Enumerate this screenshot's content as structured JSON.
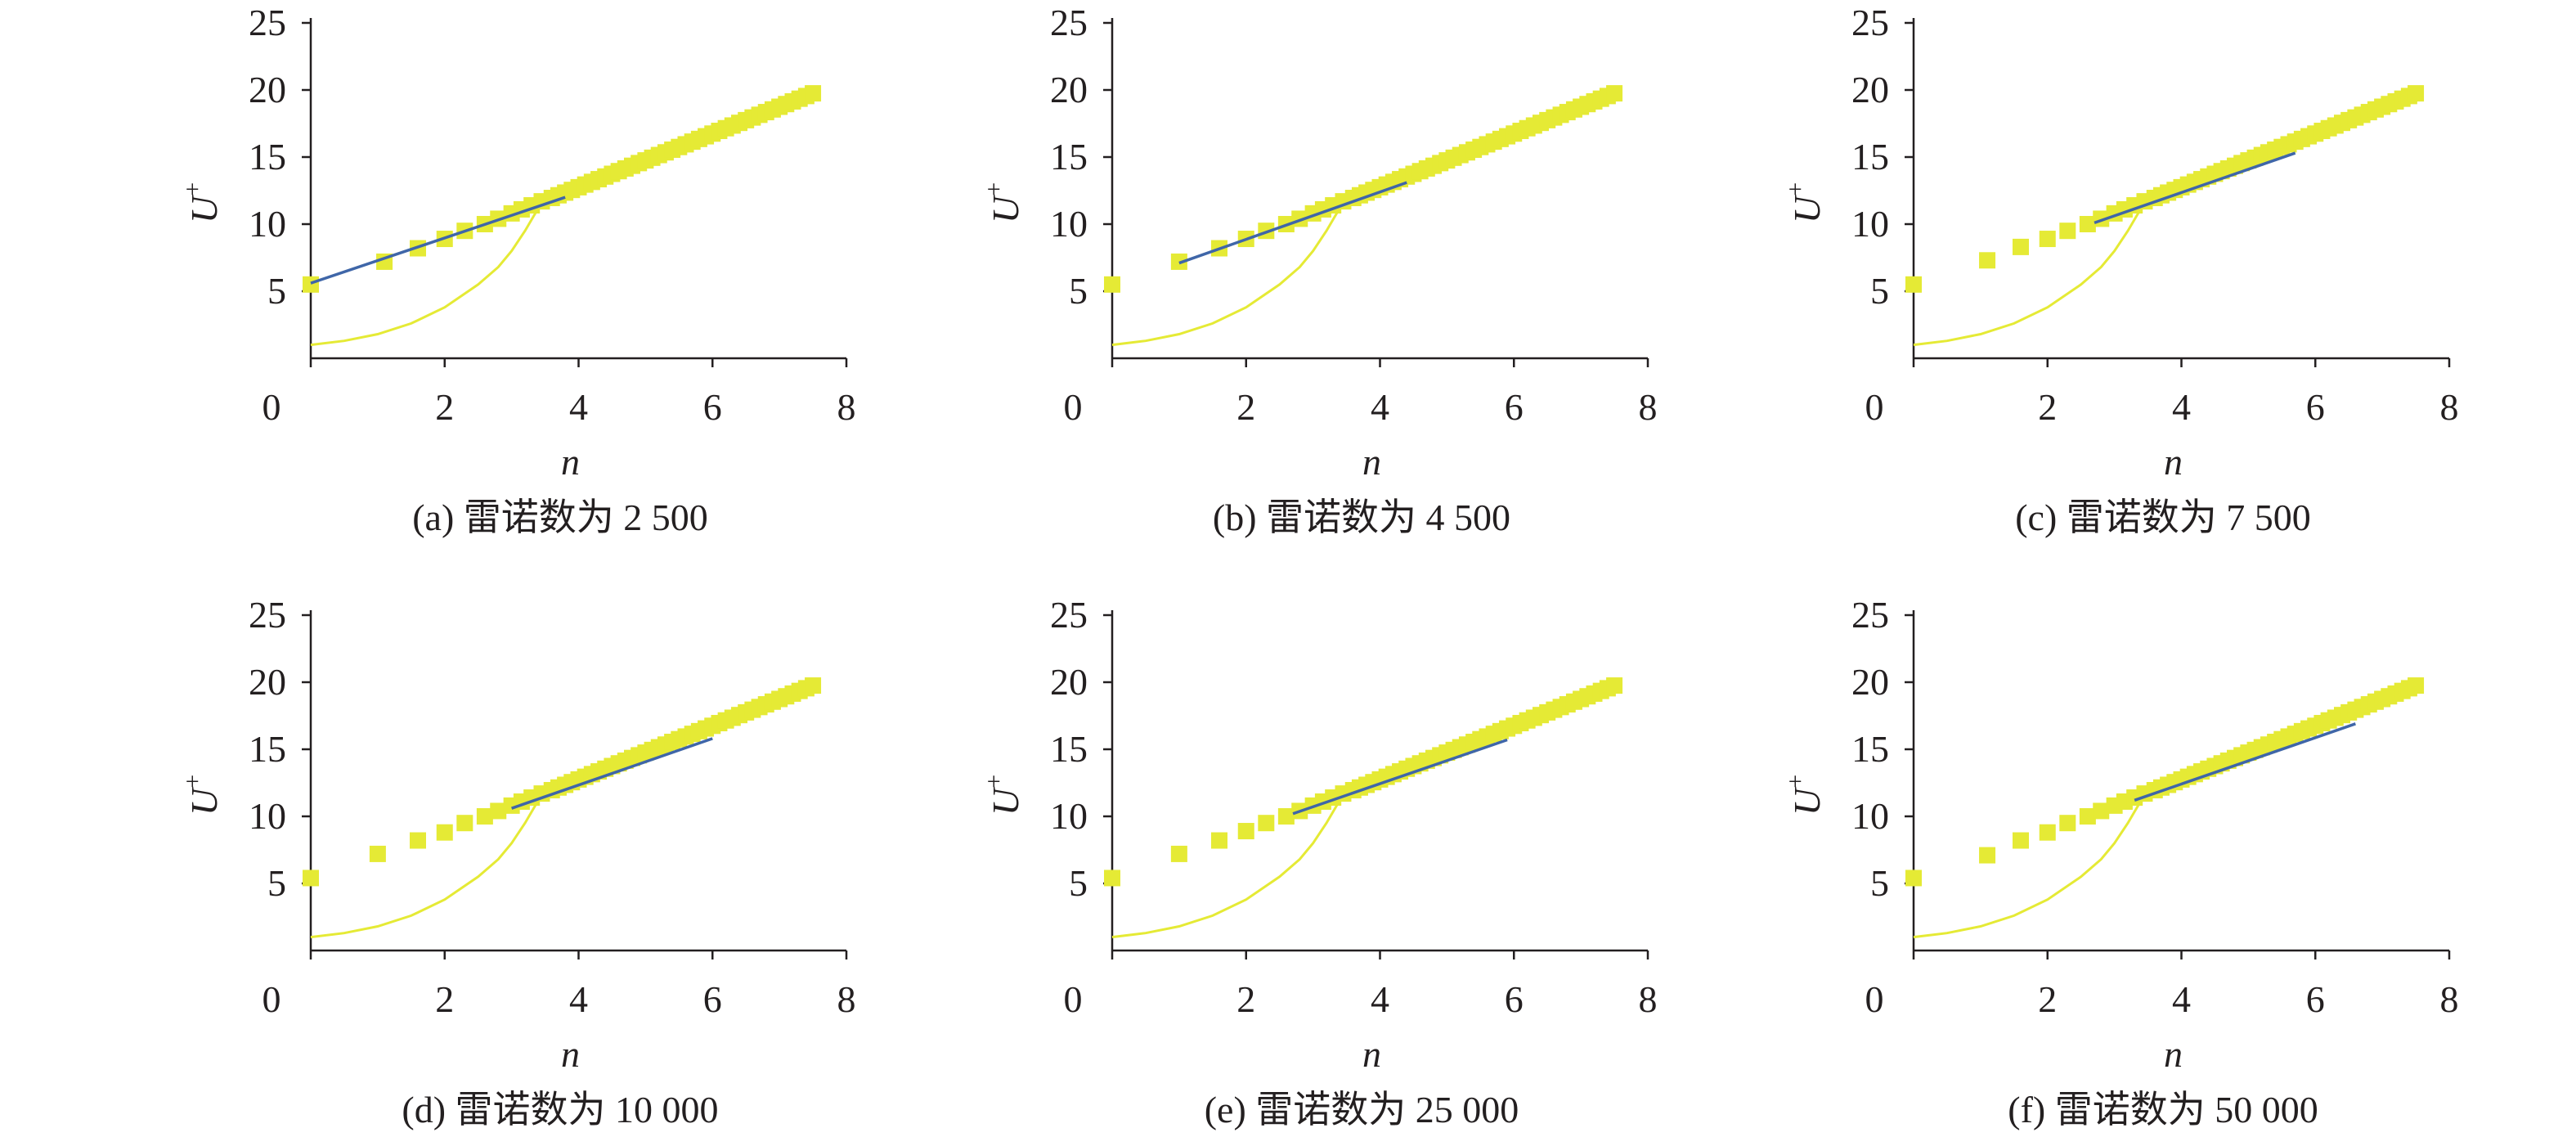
{
  "figure": {
    "colors": {
      "marker": "#e5ea35",
      "fit_line": "#3f66a8",
      "curve": "#e5ea35",
      "axis": "#231f20",
      "text": "#231f20"
    }
  },
  "chart_data": [
    {
      "type": "scatter",
      "caption": "(a) 雷诺数为 2 500",
      "xlabel": "n",
      "ylabel": "U",
      "ylabel_sup": "+",
      "xlim": [
        0,
        8
      ],
      "ylim": [
        0,
        25
      ],
      "xticks": [
        "0",
        "2",
        "4",
        "6",
        "8"
      ],
      "yticks": [
        "5",
        "10",
        "15",
        "20",
        "25"
      ],
      "grid": false,
      "legend": "none",
      "series": [
        {
          "kind": "markers",
          "x": [
            0.0,
            1.1,
            1.6,
            2.0,
            2.3,
            2.6,
            2.8,
            3.0,
            3.15,
            3.3,
            3.45,
            3.6,
            3.7,
            3.8,
            3.9,
            4.0,
            4.1,
            4.2,
            4.3,
            4.4,
            4.5,
            4.6,
            4.7,
            4.8,
            4.9,
            5.0,
            5.1,
            5.2,
            5.3,
            5.4,
            5.5,
            5.6,
            5.7,
            5.8,
            5.9,
            6.0,
            6.1,
            6.2,
            6.3,
            6.4,
            6.5,
            6.6,
            6.7,
            6.8,
            6.9,
            7.0,
            7.1,
            7.2,
            7.3,
            7.4,
            7.5
          ],
          "y": [
            5.5,
            7.2,
            8.2,
            8.9,
            9.5,
            10.0,
            10.4,
            10.8,
            11.1,
            11.4,
            11.7,
            11.95,
            12.15,
            12.35,
            12.55,
            12.75,
            12.95,
            13.15,
            13.35,
            13.55,
            13.75,
            13.95,
            14.15,
            14.35,
            14.55,
            14.75,
            14.95,
            15.15,
            15.35,
            15.55,
            15.75,
            15.95,
            16.15,
            16.35,
            16.55,
            16.75,
            16.95,
            17.15,
            17.35,
            17.55,
            17.75,
            17.95,
            18.15,
            18.35,
            18.55,
            18.75,
            18.95,
            19.15,
            19.35,
            19.55,
            19.75
          ]
        },
        {
          "kind": "fit",
          "x": [
            0.0,
            3.8
          ],
          "y": [
            5.6,
            12.0
          ]
        },
        {
          "kind": "curve",
          "x": [
            0.0,
            0.5,
            1.0,
            1.5,
            2.0,
            2.5,
            2.8,
            3.0,
            3.2,
            3.4,
            3.55
          ],
          "y": [
            1.0,
            1.3,
            1.8,
            2.6,
            3.8,
            5.5,
            6.8,
            8.0,
            9.5,
            11.2,
            12.5
          ]
        }
      ]
    },
    {
      "type": "scatter",
      "caption": "(b) 雷诺数为 4 500",
      "xlabel": "n",
      "ylabel": "U",
      "ylabel_sup": "+",
      "xlim": [
        0,
        8
      ],
      "ylim": [
        0,
        25
      ],
      "xticks": [
        "0",
        "2",
        "4",
        "6",
        "8"
      ],
      "yticks": [
        "5",
        "10",
        "15",
        "20",
        "25"
      ],
      "grid": false,
      "legend": "none",
      "series": [
        {
          "kind": "markers",
          "x": [
            0.0,
            1.0,
            1.6,
            2.0,
            2.3,
            2.6,
            2.8,
            3.0,
            3.15,
            3.3,
            3.45,
            3.6,
            3.7,
            3.8,
            3.9,
            4.0,
            4.1,
            4.2,
            4.3,
            4.4,
            4.5,
            4.6,
            4.7,
            4.8,
            4.9,
            5.0,
            5.1,
            5.2,
            5.3,
            5.4,
            5.5,
            5.6,
            5.7,
            5.8,
            5.9,
            6.0,
            6.1,
            6.2,
            6.3,
            6.4,
            6.5,
            6.6,
            6.7,
            6.8,
            6.9,
            7.0,
            7.1,
            7.2,
            7.3,
            7.4,
            7.5
          ],
          "y": [
            5.5,
            7.2,
            8.2,
            8.9,
            9.5,
            10.0,
            10.4,
            10.8,
            11.1,
            11.4,
            11.7,
            11.95,
            12.15,
            12.35,
            12.55,
            12.75,
            12.95,
            13.15,
            13.35,
            13.55,
            13.75,
            13.95,
            14.15,
            14.35,
            14.55,
            14.75,
            14.95,
            15.15,
            15.35,
            15.55,
            15.75,
            15.95,
            16.15,
            16.35,
            16.55,
            16.75,
            16.95,
            17.15,
            17.35,
            17.55,
            17.75,
            17.95,
            18.15,
            18.35,
            18.55,
            18.75,
            18.95,
            19.15,
            19.35,
            19.55,
            19.75
          ]
        },
        {
          "kind": "fit",
          "x": [
            1.0,
            4.4
          ],
          "y": [
            7.1,
            13.1
          ]
        },
        {
          "kind": "curve",
          "x": [
            0.0,
            0.5,
            1.0,
            1.5,
            2.0,
            2.5,
            2.8,
            3.0,
            3.2,
            3.4,
            3.55
          ],
          "y": [
            1.0,
            1.3,
            1.8,
            2.6,
            3.8,
            5.5,
            6.8,
            8.0,
            9.5,
            11.2,
            12.5
          ]
        }
      ]
    },
    {
      "type": "scatter",
      "caption": "(c) 雷诺数为 7 500",
      "xlabel": "n",
      "ylabel": "U",
      "ylabel_sup": "+",
      "xlim": [
        0,
        8
      ],
      "ylim": [
        0,
        25
      ],
      "xticks": [
        "0",
        "2",
        "4",
        "6",
        "8"
      ],
      "yticks": [
        "5",
        "10",
        "15",
        "20",
        "25"
      ],
      "grid": false,
      "legend": "none",
      "series": [
        {
          "kind": "markers",
          "x": [
            0.0,
            1.1,
            1.6,
            2.0,
            2.3,
            2.6,
            2.8,
            3.0,
            3.15,
            3.3,
            3.45,
            3.6,
            3.7,
            3.8,
            3.9,
            4.0,
            4.1,
            4.2,
            4.3,
            4.4,
            4.5,
            4.6,
            4.7,
            4.8,
            4.9,
            5.0,
            5.1,
            5.2,
            5.3,
            5.4,
            5.5,
            5.6,
            5.7,
            5.8,
            5.9,
            6.0,
            6.1,
            6.2,
            6.3,
            6.4,
            6.5,
            6.6,
            6.7,
            6.8,
            6.9,
            7.0,
            7.1,
            7.2,
            7.3,
            7.4,
            7.5
          ],
          "y": [
            5.5,
            7.3,
            8.3,
            8.9,
            9.5,
            10.0,
            10.4,
            10.8,
            11.1,
            11.4,
            11.7,
            11.95,
            12.15,
            12.35,
            12.55,
            12.75,
            12.95,
            13.15,
            13.35,
            13.55,
            13.75,
            13.95,
            14.15,
            14.35,
            14.55,
            14.75,
            14.95,
            15.15,
            15.35,
            15.55,
            15.75,
            15.95,
            16.15,
            16.35,
            16.55,
            16.75,
            16.95,
            17.15,
            17.35,
            17.55,
            17.75,
            17.95,
            18.15,
            18.35,
            18.55,
            18.75,
            18.95,
            19.15,
            19.35,
            19.55,
            19.75
          ]
        },
        {
          "kind": "fit",
          "x": [
            2.7,
            5.7
          ],
          "y": [
            10.1,
            15.3
          ]
        },
        {
          "kind": "curve",
          "x": [
            0.0,
            0.5,
            1.0,
            1.5,
            2.0,
            2.5,
            2.8,
            3.0,
            3.2,
            3.4,
            3.55
          ],
          "y": [
            1.0,
            1.3,
            1.8,
            2.6,
            3.8,
            5.5,
            6.8,
            8.0,
            9.5,
            11.2,
            12.5
          ]
        }
      ]
    },
    {
      "type": "scatter",
      "caption": "(d) 雷诺数为 10 000",
      "xlabel": "n",
      "ylabel": "U",
      "ylabel_sup": "+",
      "xlim": [
        0,
        8
      ],
      "ylim": [
        0,
        25
      ],
      "xticks": [
        "0",
        "2",
        "4",
        "6",
        "8"
      ],
      "yticks": [
        "5",
        "10",
        "15",
        "20",
        "25"
      ],
      "grid": false,
      "legend": "none",
      "series": [
        {
          "kind": "markers",
          "x": [
            0.0,
            1.0,
            1.6,
            2.0,
            2.3,
            2.6,
            2.8,
            3.0,
            3.15,
            3.3,
            3.45,
            3.6,
            3.7,
            3.8,
            3.9,
            4.0,
            4.1,
            4.2,
            4.3,
            4.4,
            4.5,
            4.6,
            4.7,
            4.8,
            4.9,
            5.0,
            5.1,
            5.2,
            5.3,
            5.4,
            5.5,
            5.6,
            5.7,
            5.8,
            5.9,
            6.0,
            6.1,
            6.2,
            6.3,
            6.4,
            6.5,
            6.6,
            6.7,
            6.8,
            6.9,
            7.0,
            7.1,
            7.2,
            7.3,
            7.4,
            7.5
          ],
          "y": [
            5.4,
            7.2,
            8.2,
            8.8,
            9.5,
            10.0,
            10.4,
            10.8,
            11.1,
            11.4,
            11.7,
            11.95,
            12.15,
            12.35,
            12.55,
            12.75,
            12.95,
            13.15,
            13.35,
            13.55,
            13.75,
            13.95,
            14.15,
            14.35,
            14.55,
            14.75,
            14.95,
            15.15,
            15.35,
            15.55,
            15.75,
            15.95,
            16.15,
            16.35,
            16.55,
            16.75,
            16.95,
            17.15,
            17.35,
            17.55,
            17.75,
            17.95,
            18.15,
            18.35,
            18.55,
            18.75,
            18.95,
            19.15,
            19.35,
            19.55,
            19.75
          ]
        },
        {
          "kind": "fit",
          "x": [
            3.0,
            6.0
          ],
          "y": [
            10.6,
            15.8
          ]
        },
        {
          "kind": "curve",
          "x": [
            0.0,
            0.5,
            1.0,
            1.5,
            2.0,
            2.5,
            2.8,
            3.0,
            3.2,
            3.4,
            3.55
          ],
          "y": [
            1.0,
            1.3,
            1.8,
            2.6,
            3.8,
            5.5,
            6.8,
            8.0,
            9.5,
            11.2,
            12.5
          ]
        }
      ]
    },
    {
      "type": "scatter",
      "caption": "(e) 雷诺数为 25 000",
      "xlabel": "n",
      "ylabel": "U",
      "ylabel_sup": "+",
      "xlim": [
        0,
        8
      ],
      "ylim": [
        0,
        25
      ],
      "xticks": [
        "0",
        "2",
        "4",
        "6",
        "8"
      ],
      "yticks": [
        "5",
        "10",
        "15",
        "20",
        "25"
      ],
      "grid": false,
      "legend": "none",
      "series": [
        {
          "kind": "markers",
          "x": [
            0.0,
            1.0,
            1.6,
            2.0,
            2.3,
            2.6,
            2.8,
            3.0,
            3.15,
            3.3,
            3.45,
            3.6,
            3.7,
            3.8,
            3.9,
            4.0,
            4.1,
            4.2,
            4.3,
            4.4,
            4.5,
            4.6,
            4.7,
            4.8,
            4.9,
            5.0,
            5.1,
            5.2,
            5.3,
            5.4,
            5.5,
            5.6,
            5.7,
            5.8,
            5.9,
            6.0,
            6.1,
            6.2,
            6.3,
            6.4,
            6.5,
            6.6,
            6.7,
            6.8,
            6.9,
            7.0,
            7.1,
            7.2,
            7.3,
            7.4,
            7.5
          ],
          "y": [
            5.4,
            7.2,
            8.2,
            8.9,
            9.5,
            10.0,
            10.4,
            10.8,
            11.1,
            11.4,
            11.7,
            11.95,
            12.15,
            12.35,
            12.55,
            12.75,
            12.95,
            13.15,
            13.35,
            13.55,
            13.75,
            13.95,
            14.15,
            14.35,
            14.55,
            14.75,
            14.95,
            15.15,
            15.35,
            15.55,
            15.75,
            15.95,
            16.15,
            16.35,
            16.55,
            16.75,
            16.95,
            17.15,
            17.35,
            17.55,
            17.75,
            17.95,
            18.15,
            18.35,
            18.55,
            18.75,
            18.95,
            19.15,
            19.35,
            19.55,
            19.75
          ]
        },
        {
          "kind": "fit",
          "x": [
            2.7,
            5.9
          ],
          "y": [
            10.2,
            15.7
          ]
        },
        {
          "kind": "curve",
          "x": [
            0.0,
            0.5,
            1.0,
            1.5,
            2.0,
            2.5,
            2.8,
            3.0,
            3.2,
            3.4,
            3.55
          ],
          "y": [
            1.0,
            1.3,
            1.8,
            2.6,
            3.8,
            5.5,
            6.8,
            8.0,
            9.5,
            11.2,
            12.5
          ]
        }
      ]
    },
    {
      "type": "scatter",
      "caption": "(f) 雷诺数为 50 000",
      "xlabel": "n",
      "ylabel": "U",
      "ylabel_sup": "+",
      "xlim": [
        0,
        8
      ],
      "ylim": [
        0,
        25
      ],
      "xticks": [
        "0",
        "2",
        "4",
        "6",
        "8"
      ],
      "yticks": [
        "5",
        "10",
        "15",
        "20",
        "25"
      ],
      "grid": false,
      "legend": "none",
      "series": [
        {
          "kind": "markers",
          "x": [
            0.0,
            1.1,
            1.6,
            2.0,
            2.3,
            2.6,
            2.8,
            3.0,
            3.15,
            3.3,
            3.45,
            3.6,
            3.7,
            3.8,
            3.9,
            4.0,
            4.1,
            4.2,
            4.3,
            4.4,
            4.5,
            4.6,
            4.7,
            4.8,
            4.9,
            5.0,
            5.1,
            5.2,
            5.3,
            5.4,
            5.5,
            5.6,
            5.7,
            5.8,
            5.9,
            6.0,
            6.1,
            6.2,
            6.3,
            6.4,
            6.5,
            6.6,
            6.7,
            6.8,
            6.9,
            7.0,
            7.1,
            7.2,
            7.3,
            7.4,
            7.5
          ],
          "y": [
            5.4,
            7.1,
            8.2,
            8.8,
            9.5,
            10.0,
            10.4,
            10.8,
            11.1,
            11.4,
            11.7,
            11.95,
            12.15,
            12.35,
            12.55,
            12.75,
            12.95,
            13.15,
            13.35,
            13.55,
            13.75,
            13.95,
            14.15,
            14.35,
            14.55,
            14.75,
            14.95,
            15.15,
            15.35,
            15.55,
            15.75,
            15.95,
            16.15,
            16.35,
            16.55,
            16.75,
            16.95,
            17.15,
            17.35,
            17.55,
            17.75,
            17.95,
            18.15,
            18.35,
            18.55,
            18.75,
            18.95,
            19.15,
            19.35,
            19.55,
            19.75
          ]
        },
        {
          "kind": "fit",
          "x": [
            3.3,
            6.6
          ],
          "y": [
            11.2,
            16.9
          ]
        },
        {
          "kind": "curve",
          "x": [
            0.0,
            0.5,
            1.0,
            1.5,
            2.0,
            2.5,
            2.8,
            3.0,
            3.2,
            3.4,
            3.55
          ],
          "y": [
            1.0,
            1.3,
            1.8,
            2.6,
            3.8,
            5.5,
            6.8,
            8.0,
            9.5,
            11.2,
            12.5
          ]
        }
      ]
    }
  ]
}
